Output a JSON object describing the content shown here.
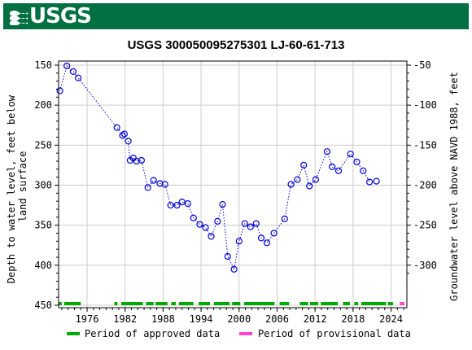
{
  "brand": {
    "logo_text": "USGS"
  },
  "colors": {
    "banner": "#006f41",
    "marker": "#0000cc",
    "approved": "#00aa00",
    "provisional": "#ff44cc",
    "grid": "#cccccc"
  },
  "chart_data": {
    "type": "scatter",
    "title": "USGS 300050095275301 LJ-60-61-713",
    "ylabel_left": "Depth to water level, feet below land surface",
    "ylabel_right": "Groundwater level above NAVD 1988, feet",
    "ylim_left": [
      150,
      450
    ],
    "ylim_right": [
      -50,
      -300
    ],
    "y_inverted": true,
    "xlim": [
      1971.5,
      2026.5
    ],
    "xticks": [
      "1976",
      "1982",
      "1988",
      "1994",
      "2000",
      "2006",
      "2012",
      "2018",
      "2024"
    ],
    "yticks_left": [
      "150",
      "200",
      "250",
      "300",
      "350",
      "400",
      "450"
    ],
    "yticks_right": [
      "-50",
      "-100",
      "-150",
      "-200",
      "-250",
      "-300"
    ],
    "grid": true,
    "points": [
      [
        1971.7,
        182
      ],
      [
        1972.8,
        151
      ],
      [
        1973.8,
        158
      ],
      [
        1974.6,
        166
      ],
      [
        1980.7,
        228
      ],
      [
        1981.6,
        238
      ],
      [
        1981.9,
        236
      ],
      [
        1982.5,
        245
      ],
      [
        1982.8,
        269
      ],
      [
        1983.3,
        266
      ],
      [
        1983.8,
        270
      ],
      [
        1984.6,
        269
      ],
      [
        1985.6,
        303
      ],
      [
        1986.5,
        294
      ],
      [
        1987.5,
        298
      ],
      [
        1988.3,
        299
      ],
      [
        1989.2,
        325
      ],
      [
        1990.2,
        325
      ],
      [
        1991.0,
        321
      ],
      [
        1991.9,
        323
      ],
      [
        1992.8,
        341
      ],
      [
        1993.8,
        349
      ],
      [
        1994.7,
        353
      ],
      [
        1995.6,
        364
      ],
      [
        1996.6,
        345
      ],
      [
        1997.4,
        324
      ],
      [
        1998.2,
        389
      ],
      [
        1999.2,
        405
      ],
      [
        2000.0,
        370
      ],
      [
        2000.9,
        348
      ],
      [
        2001.8,
        352
      ],
      [
        2002.7,
        348
      ],
      [
        2003.5,
        366
      ],
      [
        2004.4,
        372
      ],
      [
        2005.5,
        360
      ],
      [
        2007.2,
        342
      ],
      [
        2008.2,
        299
      ],
      [
        2009.2,
        293
      ],
      [
        2010.2,
        275
      ],
      [
        2011.1,
        301
      ],
      [
        2012.1,
        293
      ],
      [
        2013.9,
        258
      ],
      [
        2014.7,
        277
      ],
      [
        2015.7,
        282
      ],
      [
        2017.6,
        261
      ],
      [
        2018.6,
        271
      ],
      [
        2019.6,
        282
      ],
      [
        2020.6,
        296
      ],
      [
        2021.7,
        295
      ]
    ],
    "connected_until": 2020.6,
    "approved_segments": [
      [
        1971.5,
        1972.0
      ],
      [
        1972.4,
        1975.0
      ],
      [
        1980.3,
        1980.8
      ],
      [
        1981.4,
        1984.8
      ],
      [
        1985.3,
        1986.5
      ],
      [
        1986.8,
        1988.7
      ],
      [
        1989.3,
        1990.0
      ],
      [
        1990.5,
        1992.8
      ],
      [
        1993.6,
        1995.4
      ],
      [
        1996.0,
        1998.5
      ],
      [
        1998.9,
        2000.2
      ],
      [
        2000.8,
        2005.6
      ],
      [
        2006.4,
        2007.9
      ],
      [
        2009.6,
        2010.9
      ],
      [
        2011.2,
        2012.5
      ],
      [
        2012.9,
        2015.6
      ],
      [
        2016.4,
        2017.5
      ],
      [
        2018.2,
        2018.8
      ],
      [
        2019.3,
        2023.2
      ],
      [
        2023.5,
        2024.3
      ]
    ],
    "provisional_segments": [
      [
        2025.4,
        2026.1
      ]
    ],
    "legend": {
      "approved_label": "Period of approved data",
      "provisional_label": "Period of provisional data",
      "placement": "bottom"
    }
  }
}
